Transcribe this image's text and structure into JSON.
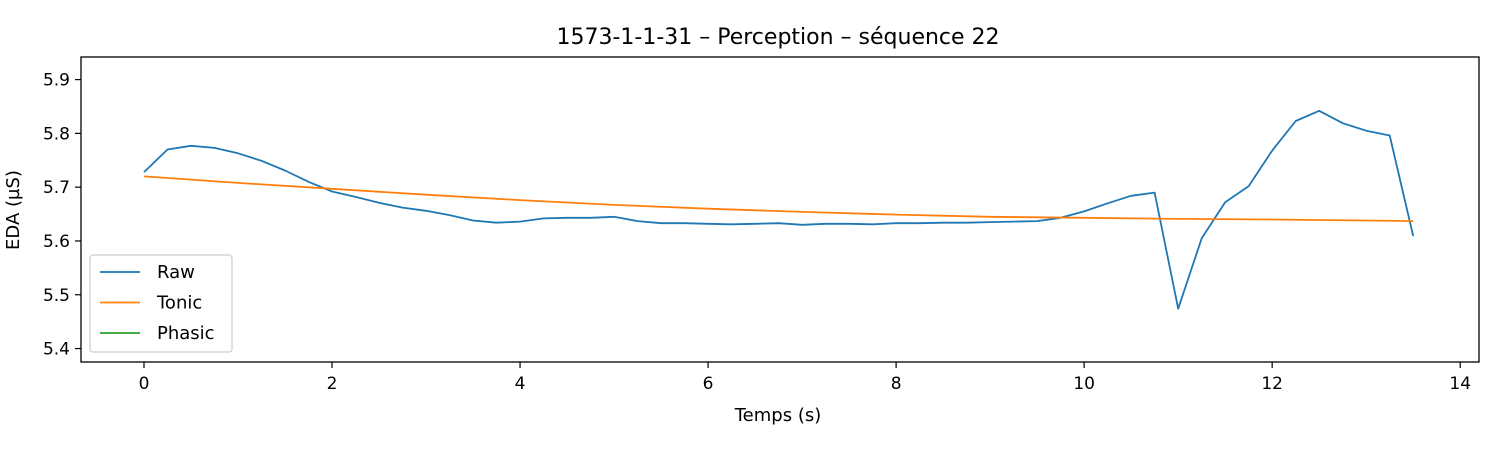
{
  "chart_data": {
    "type": "line",
    "title": "1573-1-1-31 – Perception – séquence 22",
    "xlabel": "Temps (s)",
    "ylabel": "EDA (µS)",
    "xlim": [
      -0.67,
      14.2
    ],
    "ylim": [
      5.375,
      5.942
    ],
    "xticks": [
      0,
      2,
      4,
      6,
      8,
      10,
      12,
      14
    ],
    "yticks": [
      5.4,
      5.5,
      5.6,
      5.7,
      5.8,
      5.9
    ],
    "grid": false,
    "legend_position": "lower-left",
    "series": [
      {
        "name": "Raw",
        "color": "#1f77b4",
        "x": [
          0,
          0.25,
          0.5,
          0.75,
          1.0,
          1.25,
          1.5,
          1.75,
          2.0,
          2.25,
          2.5,
          2.75,
          3.0,
          3.25,
          3.5,
          3.75,
          4.0,
          4.25,
          4.5,
          4.75,
          5.0,
          5.25,
          5.5,
          5.75,
          6.0,
          6.25,
          6.5,
          6.75,
          7.0,
          7.25,
          7.5,
          7.75,
          8.0,
          8.25,
          8.5,
          8.75,
          9.0,
          9.25,
          9.5,
          9.75,
          10.0,
          10.25,
          10.5,
          10.75,
          11.0,
          11.25,
          11.5,
          11.75,
          12.0,
          12.25,
          12.5,
          12.75,
          13.0,
          13.25,
          13.5
        ],
        "y": [
          5.728,
          5.77,
          5.777,
          5.773,
          5.763,
          5.749,
          5.731,
          5.71,
          5.692,
          5.682,
          5.671,
          5.662,
          5.656,
          5.648,
          5.638,
          5.634,
          5.636,
          5.642,
          5.643,
          5.643,
          5.645,
          5.637,
          5.633,
          5.633,
          5.632,
          5.631,
          5.632,
          5.633,
          5.63,
          5.632,
          5.632,
          5.631,
          5.633,
          5.633,
          5.634,
          5.634,
          5.635,
          5.636,
          5.637,
          5.643,
          5.655,
          5.67,
          5.684,
          5.69,
          5.474,
          5.605,
          5.672,
          5.702,
          5.768,
          5.823,
          5.842,
          5.819,
          5.805,
          5.796,
          5.609
        ]
      },
      {
        "name": "Tonic",
        "color": "#ff7f0e",
        "x": [
          0,
          1,
          2,
          3,
          4,
          5,
          6,
          7,
          8,
          9,
          10,
          11,
          12,
          13,
          13.5
        ],
        "y": [
          5.72,
          5.708,
          5.697,
          5.686,
          5.676,
          5.667,
          5.66,
          5.654,
          5.649,
          5.645,
          5.643,
          5.641,
          5.64,
          5.638,
          5.637
        ]
      },
      {
        "name": "Phasic",
        "color": "#2ca02c",
        "x": [],
        "y": []
      }
    ]
  }
}
